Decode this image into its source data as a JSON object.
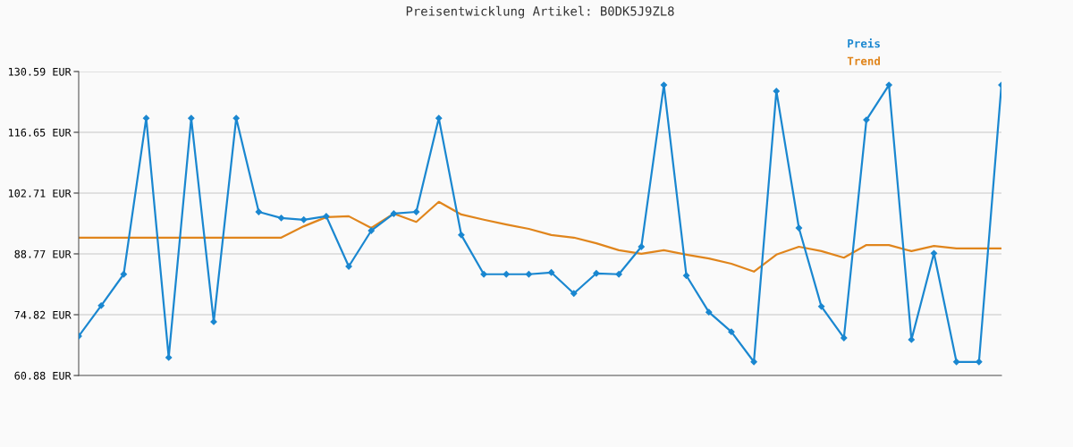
{
  "chart_data": {
    "type": "line",
    "title": "Preisentwicklung Artikel: B0DK5J9ZL8",
    "categories": [
      null,
      null,
      null,
      null,
      null,
      null,
      null,
      null,
      null,
      null,
      null,
      null,
      null,
      null,
      null,
      null,
      null,
      null,
      null,
      null,
      null,
      null,
      null,
      null,
      null,
      null,
      null,
      null,
      null,
      null,
      null,
      null,
      null,
      null,
      null,
      null,
      null,
      null,
      null,
      null,
      null,
      null
    ],
    "series": [
      {
        "name": "Preis",
        "color": "#1a87d0",
        "marker": "diamond",
        "values": [
          69.9,
          76.9,
          84.1,
          119.9,
          65.0,
          119.9,
          73.2,
          119.9,
          98.4,
          97.0,
          96.6,
          97.4,
          85.9,
          94.1,
          98.0,
          98.4,
          119.9,
          93.1,
          84.1,
          84.1,
          84.1,
          84.5,
          79.7,
          84.3,
          84.1,
          90.4,
          127.5,
          83.8,
          75.4,
          70.9,
          64.0,
          126.1,
          94.7,
          76.7,
          69.5,
          119.5,
          127.5,
          69.1,
          88.9,
          64.0,
          64.0,
          127.5
        ]
      },
      {
        "name": "Trend",
        "color": "#e0851c",
        "marker": "none",
        "values": [
          92.5,
          92.5,
          92.5,
          92.5,
          92.5,
          92.5,
          92.5,
          92.5,
          92.5,
          92.5,
          95.1,
          97.2,
          97.4,
          94.7,
          98.0,
          96.1,
          100.7,
          97.8,
          96.6,
          95.5,
          94.5,
          93.1,
          92.5,
          91.2,
          89.6,
          88.8,
          89.6,
          88.6,
          87.7,
          86.5,
          84.7,
          88.6,
          90.4,
          89.4,
          87.9,
          90.8,
          90.8,
          89.4,
          90.6,
          90.0,
          90.0,
          90.0
        ]
      }
    ],
    "ylim": [
      60.88,
      130.59
    ],
    "yticks": [
      {
        "value": 60.88,
        "label": "60.88 EUR"
      },
      {
        "value": 74.82,
        "label": "74.82 EUR"
      },
      {
        "value": 88.77,
        "label": "88.77 EUR"
      },
      {
        "value": 102.71,
        "label": "102.71 EUR"
      },
      {
        "value": 116.65,
        "label": "116.65 EUR"
      },
      {
        "value": 130.59,
        "label": "130.59 EUR"
      }
    ],
    "grid": "y",
    "legend": "top right",
    "line_style": "solid"
  }
}
